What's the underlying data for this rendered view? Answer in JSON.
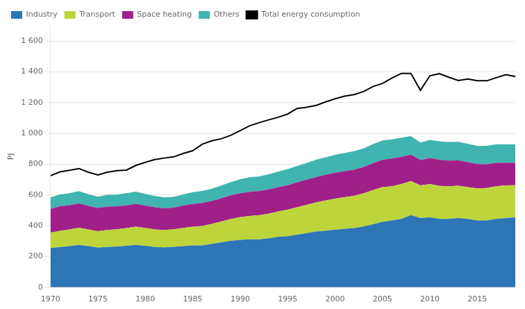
{
  "chart_data": {
    "type": "area",
    "stacked": true,
    "x": [
      1970,
      1971,
      1972,
      1973,
      1974,
      1975,
      1976,
      1977,
      1978,
      1979,
      1980,
      1981,
      1982,
      1983,
      1984,
      1985,
      1986,
      1987,
      1988,
      1989,
      1990,
      1991,
      1992,
      1993,
      1994,
      1995,
      1996,
      1997,
      1998,
      1999,
      2000,
      2001,
      2002,
      2003,
      2004,
      2005,
      2006,
      2007,
      2008,
      2009,
      2010,
      2011,
      2012,
      2013,
      2014,
      2015,
      2016,
      2017,
      2018,
      2019
    ],
    "series": [
      {
        "name": "Industry",
        "color": "#2e75b6",
        "values": [
          255,
          262,
          268,
          275,
          268,
          258,
          262,
          265,
          270,
          276,
          270,
          262,
          260,
          263,
          268,
          272,
          272,
          282,
          292,
          302,
          308,
          312,
          312,
          318,
          328,
          332,
          342,
          352,
          362,
          368,
          375,
          380,
          385,
          395,
          410,
          425,
          435,
          445,
          470,
          450,
          455,
          445,
          445,
          450,
          445,
          435,
          435,
          445,
          450,
          455
        ]
      },
      {
        "name": "Transport",
        "color": "#bdd43a",
        "values": [
          100,
          105,
          108,
          112,
          108,
          106,
          110,
          112,
          115,
          118,
          116,
          114,
          112,
          114,
          118,
          122,
          126,
          130,
          136,
          142,
          148,
          152,
          156,
          160,
          165,
          172,
          178,
          184,
          190,
          196,
          202,
          206,
          210,
          215,
          222,
          226,
          222,
          226,
          220,
          212,
          216,
          214,
          212,
          210,
          206,
          208,
          210,
          212,
          212,
          208
        ]
      },
      {
        "name": "Space heating",
        "color": "#a0208a",
        "values": [
          155,
          160,
          158,
          158,
          153,
          152,
          153,
          150,
          148,
          148,
          145,
          144,
          141,
          141,
          145,
          148,
          150,
          149,
          151,
          154,
          156,
          157,
          158,
          158,
          158,
          160,
          163,
          164,
          165,
          167,
          168,
          169,
          170,
          172,
          175,
          178,
          180,
          177,
          172,
          165,
          169,
          170,
          167,
          165,
          162,
          158,
          155,
          152,
          148,
          146
        ]
      },
      {
        "name": "Others",
        "color": "#40b4b0",
        "values": [
          75,
          77,
          78,
          80,
          76,
          73,
          76,
          76,
          78,
          80,
          76,
          73,
          71,
          70,
          73,
          76,
          78,
          80,
          82,
          86,
          90,
          94,
          95,
          98,
          100,
          104,
          106,
          108,
          112,
          114,
          116,
          118,
          119,
          121,
          124,
          126,
          124,
          124,
          121,
          114,
          118,
          120,
          120,
          120,
          120,
          117,
          119,
          121,
          120,
          119
        ]
      },
      {
        "name": "Total energy consumption",
        "type": "line",
        "color": "#000000",
        "values": [
          725,
          750,
          760,
          772,
          748,
          730,
          748,
          758,
          762,
          792,
          812,
          830,
          840,
          848,
          870,
          888,
          930,
          952,
          965,
          988,
          1018,
          1050,
          1070,
          1088,
          1105,
          1126,
          1162,
          1170,
          1182,
          1205,
          1225,
          1242,
          1252,
          1272,
          1305,
          1325,
          1360,
          1390,
          1390,
          1280,
          1375,
          1388,
          1365,
          1344,
          1354,
          1342,
          1342,
          1362,
          1382,
          1370
        ]
      }
    ],
    "ylabel": "PJ",
    "xlim": [
      1970,
      2019
    ],
    "xticks": [
      1970,
      1975,
      1980,
      1985,
      1990,
      1995,
      2000,
      2005,
      2010,
      2015
    ],
    "ylim": [
      0,
      1700
    ],
    "yticks": [
      0,
      200,
      400,
      600,
      800,
      {
        "value": 1000,
        "label": "1 000"
      },
      {
        "value": 1200,
        "label": "1 200"
      },
      {
        "value": 1400,
        "label": "1 400"
      },
      {
        "value": 1600,
        "label": "1 600"
      }
    ],
    "grid": "y",
    "legend": "upper left"
  }
}
